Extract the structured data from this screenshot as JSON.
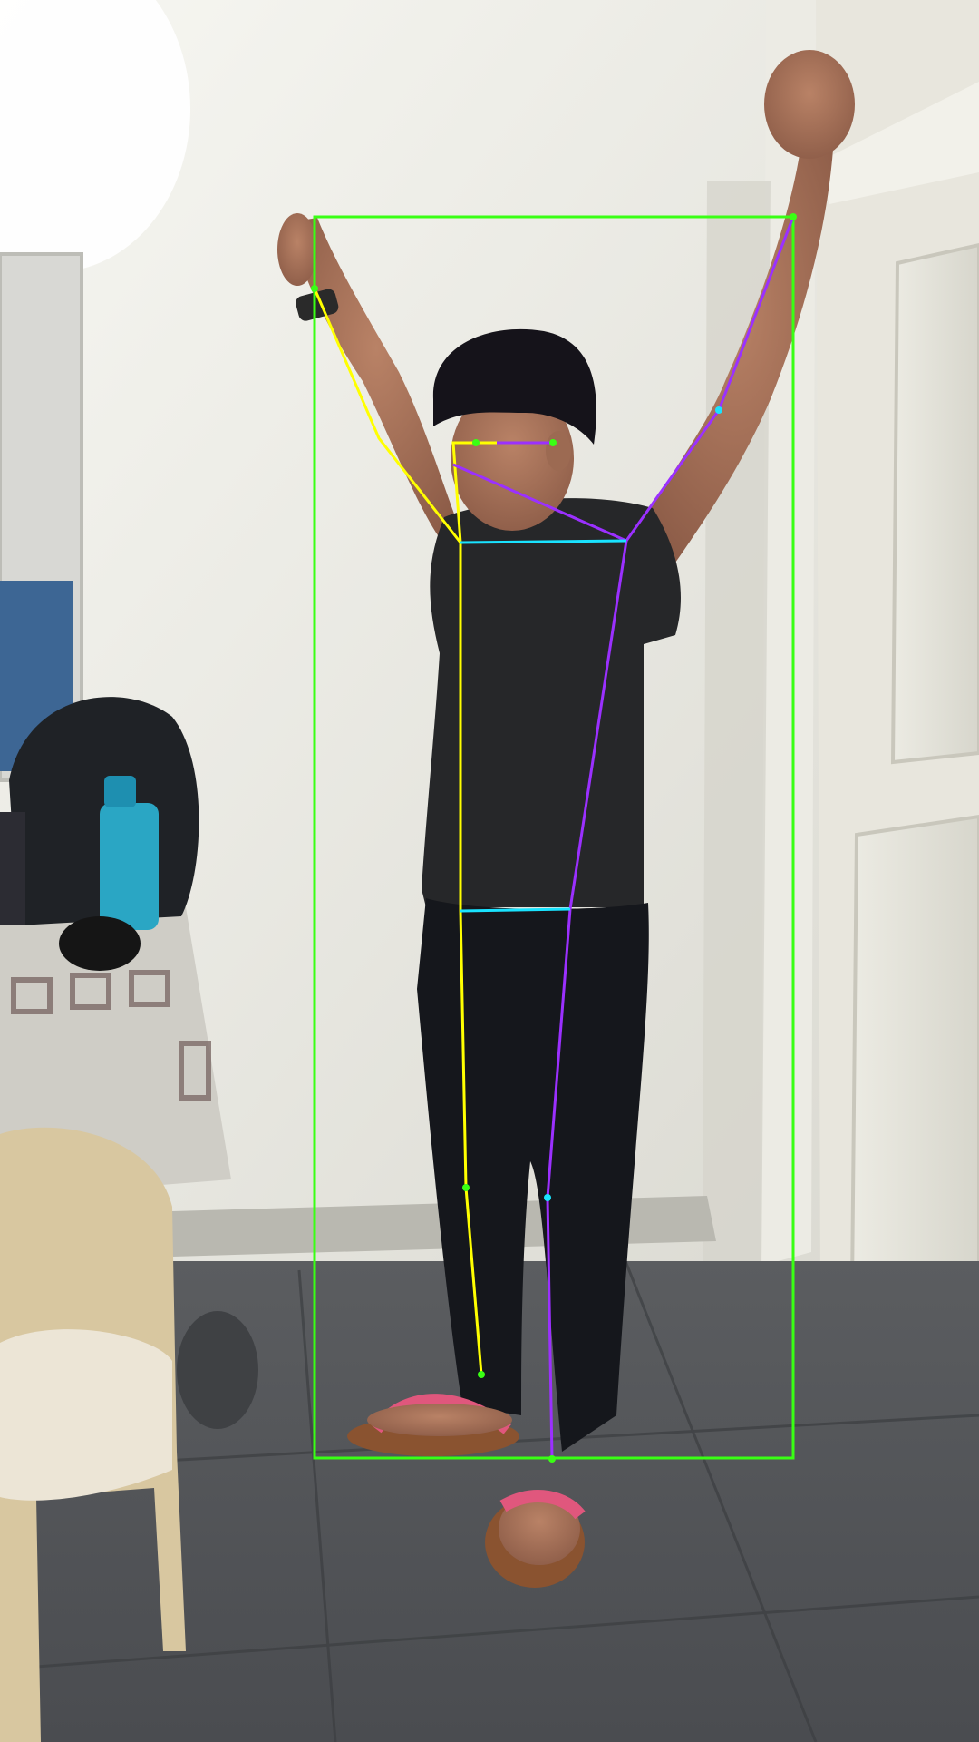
{
  "image": {
    "kind": "photo-with-pose-overlay",
    "subject": "person",
    "overlay": {
      "bbox_color": "#39ff14",
      "left_side_color": "#ffff00",
      "right_side_color": "#9b30ff",
      "cross_link_color": "#19e3ff",
      "joint_marker": "dot"
    }
  }
}
